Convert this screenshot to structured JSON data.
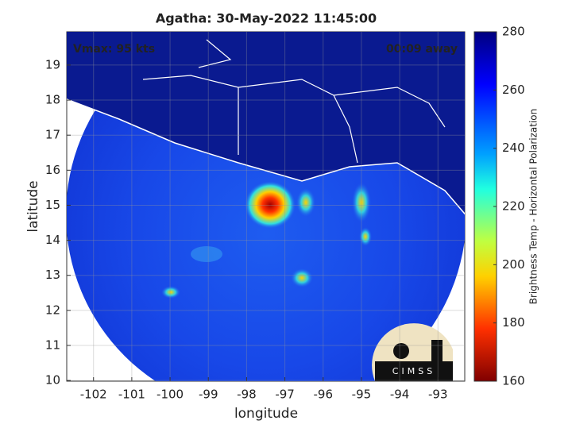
{
  "chart_data": {
    "type": "map",
    "title": "Agatha: 30-May-2022 11:45:00",
    "annotations": [
      "Vmax: 95 kts",
      "00:09 away"
    ],
    "xlabel": "longitude",
    "ylabel": "latitude",
    "xlim": [
      -102.7,
      -92.3
    ],
    "xticks": [
      -102,
      -101,
      -100,
      -99,
      -98,
      -97,
      -96,
      -95,
      -94,
      -93
    ],
    "ylim": [
      9.98,
      19.95
    ],
    "yticks": [
      10,
      11,
      12,
      13,
      14,
      15,
      16,
      17,
      18,
      19
    ],
    "grid": true,
    "colorbar": {
      "label": "Brightness Temp - Horizontal Polarization",
      "lim": [
        160,
        280
      ],
      "ticks": [
        160,
        180,
        200,
        220,
        240,
        260,
        280
      ]
    },
    "logo": "CIMSS"
  }
}
